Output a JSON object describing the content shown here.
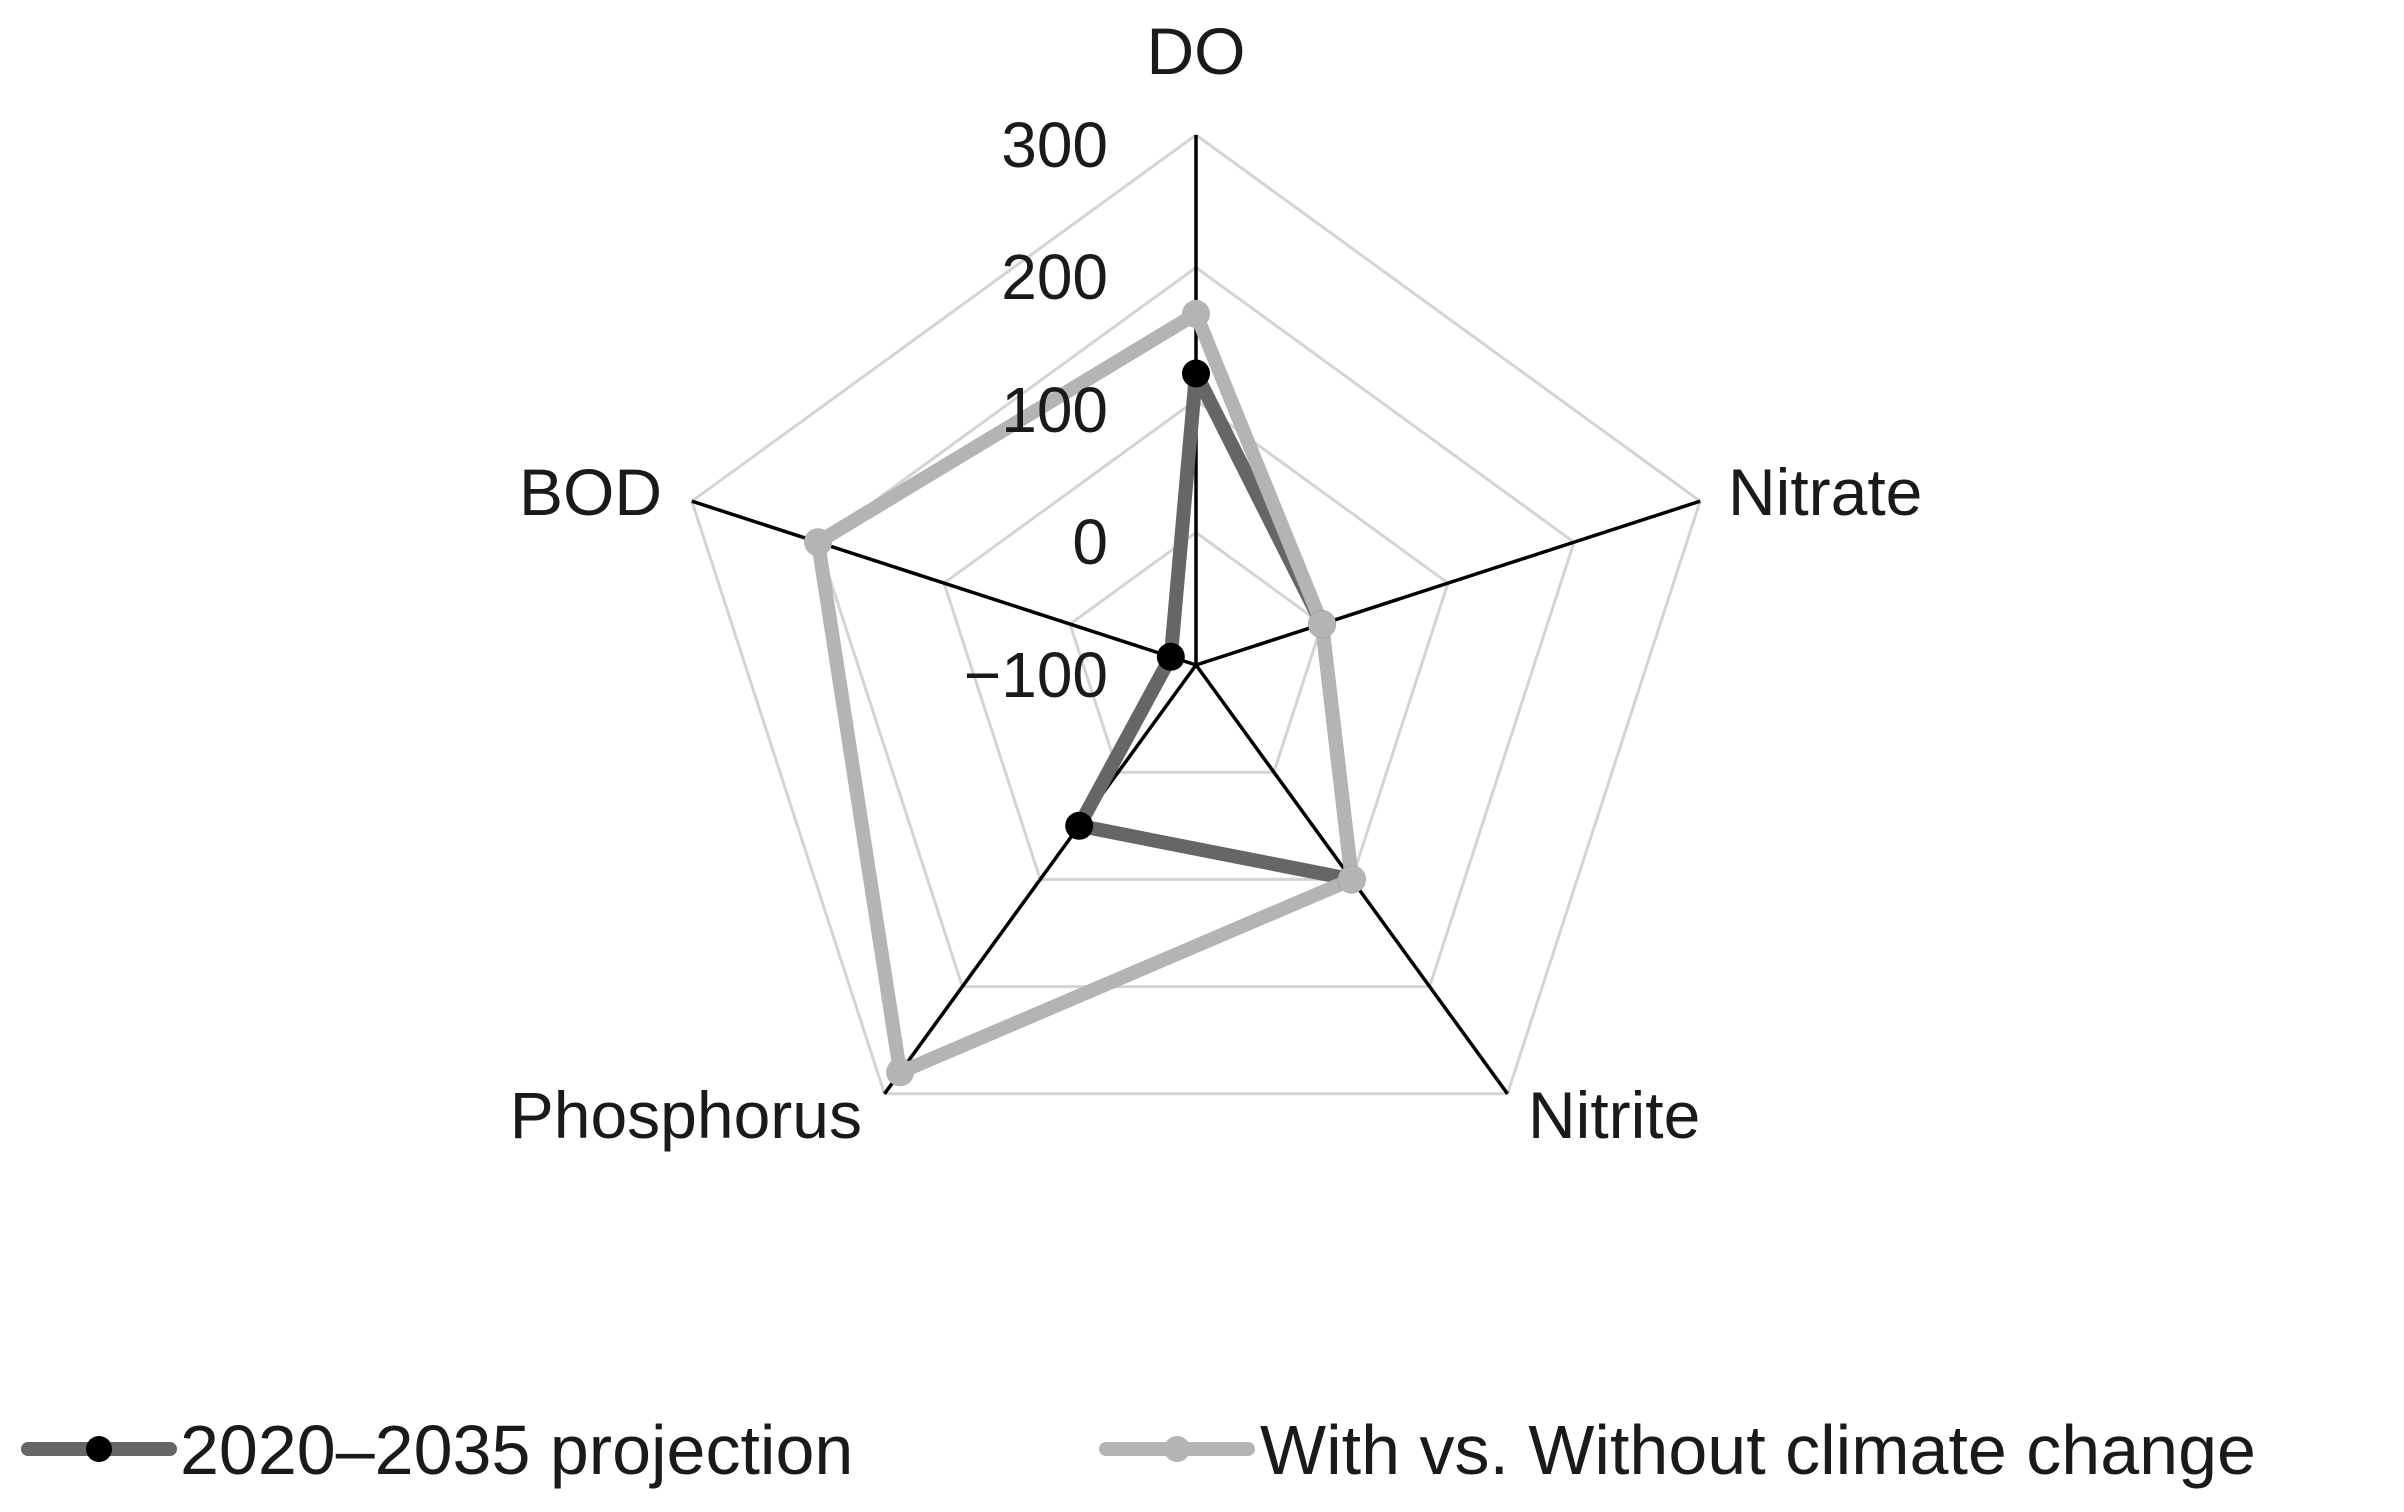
{
  "chart_data": {
    "type": "radar",
    "title": "",
    "axes": [
      "DO",
      "Nitrate",
      "Nitrite",
      "Phosphorus",
      "BOD"
    ],
    "r_ticks": [
      "300",
      "200",
      "100",
      "0",
      "−100"
    ],
    "r_range": [
      -100,
      300
    ],
    "r_tick_values": [
      300,
      200,
      100,
      0,
      -100
    ],
    "grid": true,
    "legend_position": "bottom",
    "series": [
      {
        "name": "2020–2035 projection",
        "values": [
          120,
          0,
          100,
          50,
          -80
        ],
        "color": "#666666",
        "marker_color": "#000000"
      },
      {
        "name": "With vs. Without climate change",
        "values": [
          165,
          0,
          100,
          280,
          200
        ],
        "color": "#b4b4b4",
        "marker_color": "#b4b4b4"
      }
    ],
    "colors": {
      "grid": "#d4d4d4",
      "spoke": "#000000"
    }
  }
}
